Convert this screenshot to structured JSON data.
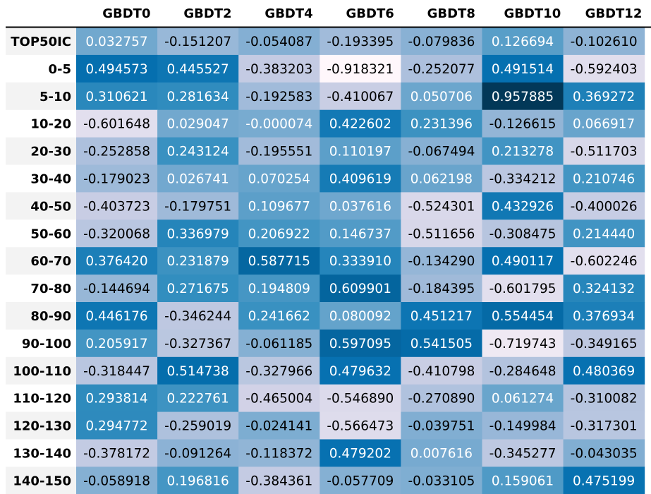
{
  "chart_data": {
    "type": "heatmap",
    "title": "",
    "columns": [
      "GBDT0",
      "GBDT2",
      "GBDT4",
      "GBDT6",
      "GBDT8",
      "GBDT10",
      "GBDT12"
    ],
    "rows": [
      "TOP50IC",
      "0-5",
      "5-10",
      "10-20",
      "20-30",
      "30-40",
      "40-50",
      "50-60",
      "60-70",
      "70-80",
      "80-90",
      "90-100",
      "100-110",
      "110-120",
      "120-130",
      "130-140",
      "140-150"
    ],
    "values": [
      [
        "0.032757",
        "-0.151207",
        "-0.054087",
        "-0.193395",
        "-0.079836",
        "0.126694",
        "-0.102610"
      ],
      [
        "0.494573",
        "0.445527",
        "-0.383203",
        "-0.918321",
        "-0.252077",
        "0.491514",
        "-0.592403"
      ],
      [
        "0.310621",
        "0.281634",
        "-0.192583",
        "-0.410067",
        "0.050706",
        "0.957885",
        "0.369272"
      ],
      [
        "-0.601648",
        "0.029047",
        "-0.000074",
        "0.422602",
        "0.231396",
        "-0.126615",
        "0.066917"
      ],
      [
        "-0.252858",
        "0.243124",
        "-0.195551",
        "0.110197",
        "-0.067494",
        "0.213278",
        "-0.511703"
      ],
      [
        "-0.179023",
        "0.026741",
        "0.070254",
        "0.409619",
        "0.062198",
        "-0.334212",
        "0.210746"
      ],
      [
        "-0.403723",
        "-0.179751",
        "0.109677",
        "0.037616",
        "-0.524301",
        "0.432926",
        "-0.400026"
      ],
      [
        "-0.320068",
        "0.336979",
        "0.206922",
        "0.146737",
        "-0.511656",
        "-0.308475",
        "0.214440"
      ],
      [
        "0.376420",
        "0.231879",
        "0.587715",
        "0.333910",
        "-0.134290",
        "0.490117",
        "-0.602246"
      ],
      [
        "-0.144694",
        "0.271675",
        "0.194809",
        "0.609901",
        "-0.184395",
        "-0.601795",
        "0.324132"
      ],
      [
        "0.446176",
        "-0.346244",
        "0.241662",
        "0.080092",
        "0.451217",
        "0.554454",
        "0.376934"
      ],
      [
        "0.205917",
        "-0.327367",
        "-0.061185",
        "0.597095",
        "0.541505",
        "-0.719743",
        "-0.349165"
      ],
      [
        "-0.318447",
        "0.514738",
        "-0.327966",
        "0.479632",
        "-0.410798",
        "-0.284648",
        "0.480369"
      ],
      [
        "0.293814",
        "0.222761",
        "-0.465004",
        "-0.546890",
        "-0.270890",
        "0.061274",
        "-0.310082"
      ],
      [
        "0.294772",
        "-0.259019",
        "-0.024141",
        "-0.566473",
        "-0.039751",
        "-0.149984",
        "-0.317301"
      ],
      [
        "-0.378172",
        "-0.091264",
        "-0.118372",
        "0.479202",
        "0.007616",
        "-0.345277",
        "-0.043035"
      ],
      [
        "-0.058918",
        "0.196816",
        "-0.384361",
        "-0.057709",
        "-0.033105",
        "0.159061",
        "0.475199"
      ]
    ],
    "value_range": [
      -0.918321,
      0.957885
    ],
    "colormap": "PuBu"
  }
}
